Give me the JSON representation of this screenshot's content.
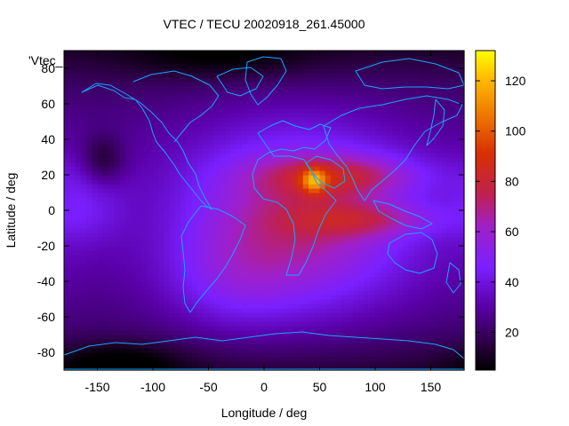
{
  "chart_data": {
    "type": "heatmap",
    "title": "VTEC / TECU 20020918_261.45000",
    "xlabel": "Longitude / deg",
    "ylabel": "Latitude / deg",
    "series_key": "'Vtec_",
    "xlim": [
      -180,
      180
    ],
    "ylim": [
      -90,
      90
    ],
    "x_ticks": [
      -150,
      -100,
      -50,
      0,
      50,
      100,
      150
    ],
    "y_ticks": [
      -80,
      -60,
      -40,
      -20,
      0,
      20,
      40,
      60,
      80
    ],
    "colorbar": {
      "range": [
        5,
        132
      ],
      "ticks": [
        20,
        40,
        60,
        80,
        100,
        120
      ],
      "palette": "black-purple-red-orange-yellow"
    },
    "grid_resolution_deg": {
      "lon": 5,
      "lat": 2.5
    },
    "features": [
      {
        "name": "equatorial-anomaly-peak",
        "lon": 45,
        "lat": 17,
        "vtec": 128
      },
      {
        "name": "northern-crest",
        "lon": 70,
        "lat": 20,
        "vtec": 95
      },
      {
        "name": "southern-crest",
        "lon": 90,
        "lat": -5,
        "vtec": 85
      },
      {
        "name": "dayside-background",
        "lon": 20,
        "lat": -10,
        "vtec": 70
      },
      {
        "name": "nightside-minimum",
        "lon": -145,
        "lat": 28,
        "vtec": 10
      },
      {
        "name": "polar-minimum-south",
        "lon": -130,
        "lat": -85,
        "vtec": 12
      }
    ]
  }
}
